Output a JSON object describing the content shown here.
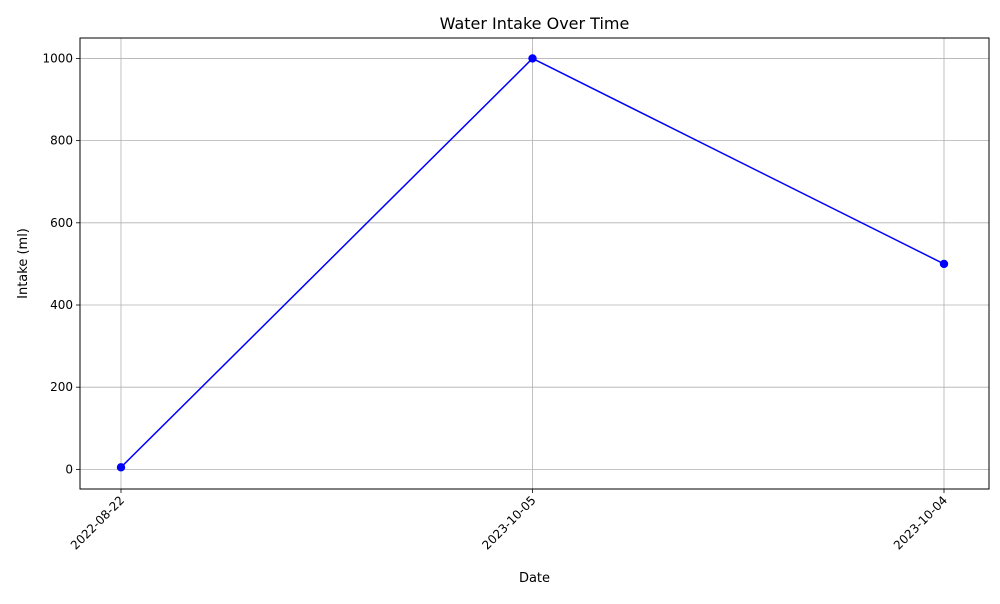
{
  "chart_data": {
    "type": "line",
    "title": "Water Intake Over Time",
    "xlabel": "Date",
    "ylabel": "Intake (ml)",
    "categories": [
      "2022-08-22",
      "2023-10-05",
      "2023-10-04"
    ],
    "series": [
      {
        "values": [
          5,
          1000,
          500
        ],
        "color": "#0000ff",
        "marker": "circle"
      }
    ],
    "ylim": [
      -47.75,
      1049.75
    ],
    "yticks": [
      0,
      200,
      400,
      600,
      800,
      1000
    ],
    "grid": true,
    "legend": "none",
    "xtick_rotation": 45
  }
}
